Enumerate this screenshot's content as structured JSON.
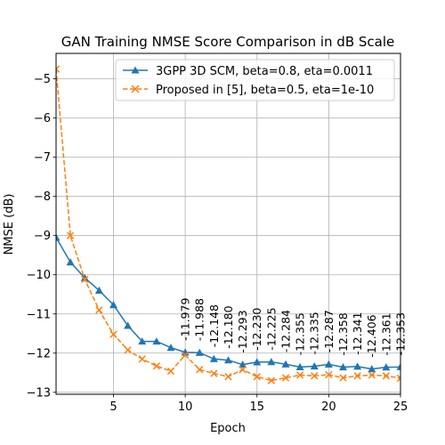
{
  "chart_data": {
    "type": "line",
    "title": "GAN Training NMSE Score Comparison in dB Scale",
    "xlabel": "Epoch",
    "ylabel": "NMSE (dB)",
    "xlim": [
      1,
      25
    ],
    "ylim": [
      -13.05,
      -4.35
    ],
    "xticks": [
      5,
      10,
      15,
      20,
      25
    ],
    "yticks": [
      -13,
      -12,
      -11,
      -10,
      -9,
      -8,
      -7,
      -6,
      -5
    ],
    "grid": true,
    "legend_position": "top-right",
    "x": [
      1,
      2,
      3,
      4,
      5,
      6,
      7,
      8,
      9,
      10,
      11,
      12,
      13,
      14,
      15,
      16,
      17,
      18,
      19,
      20,
      21,
      22,
      23,
      24,
      25
    ],
    "series": [
      {
        "name": "3GPP 3D SCM, beta=0.8, eta=0.0011",
        "color": "#1f77b4",
        "marker": "triangle",
        "line_style": "solid",
        "values": [
          -9.05,
          -9.68,
          -10.08,
          -10.4,
          -10.77,
          -11.3,
          -11.7,
          -11.7,
          -11.86,
          -11.979,
          -11.988,
          -12.148,
          -12.18,
          -12.293,
          -12.23,
          -12.225,
          -12.284,
          -12.355,
          -12.335,
          -12.287,
          -12.358,
          -12.341,
          -12.406,
          -12.361,
          -12.353
        ]
      },
      {
        "name": "Proposed in [5], beta=0.5, eta=1e-10",
        "color": "#ff7f0e",
        "marker": "x",
        "line_style": "dashed",
        "values": [
          -4.75,
          -9.0,
          -10.12,
          -10.9,
          -11.52,
          -11.92,
          -12.15,
          -12.33,
          -12.46,
          -12.05,
          -12.42,
          -12.52,
          -12.6,
          -12.42,
          -12.6,
          -12.7,
          -12.63,
          -12.56,
          -12.58,
          -12.55,
          -12.63,
          -12.58,
          -12.56,
          -12.58,
          -12.64
        ]
      }
    ],
    "annotations": [
      {
        "x": 10,
        "y": -11.979,
        "text": "-11.979"
      },
      {
        "x": 11,
        "y": -11.988,
        "text": "-11.988"
      },
      {
        "x": 12,
        "y": -12.148,
        "text": "-12.148"
      },
      {
        "x": 13,
        "y": -12.18,
        "text": "-12.180"
      },
      {
        "x": 14,
        "y": -12.293,
        "text": "-12.293"
      },
      {
        "x": 15,
        "y": -12.23,
        "text": "-12.230"
      },
      {
        "x": 16,
        "y": -12.225,
        "text": "-12.225"
      },
      {
        "x": 17,
        "y": -12.284,
        "text": "-12.284"
      },
      {
        "x": 18,
        "y": -12.355,
        "text": "-12.355"
      },
      {
        "x": 19,
        "y": -12.335,
        "text": "-12.335"
      },
      {
        "x": 20,
        "y": -12.287,
        "text": "-12.287"
      },
      {
        "x": 21,
        "y": -12.358,
        "text": "-12.358"
      },
      {
        "x": 22,
        "y": -12.341,
        "text": "-12.341"
      },
      {
        "x": 23,
        "y": -12.406,
        "text": "-12.406"
      },
      {
        "x": 24,
        "y": -12.361,
        "text": "-12.361"
      },
      {
        "x": 25,
        "y": -12.353,
        "text": "-12.353"
      }
    ]
  }
}
